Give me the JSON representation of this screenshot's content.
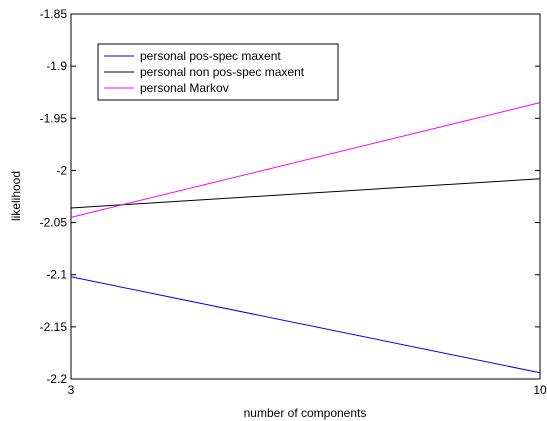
{
  "chart_data": {
    "type": "line",
    "title": "",
    "xlabel": "number of components",
    "ylabel": "likelihood",
    "xlim": [
      3,
      10
    ],
    "ylim": [
      -2.2,
      -1.85
    ],
    "x_ticks": [
      3,
      10
    ],
    "x_tick_labels": [
      "3",
      "10"
    ],
    "y_ticks": [
      -1.85,
      -1.9,
      -1.95,
      -2.0,
      -2.05,
      -2.1,
      -2.15,
      -2.2
    ],
    "y_tick_labels": [
      "-1.85",
      "-1.9",
      "-1.95",
      "-2",
      "-2.05",
      "-2.1",
      "-2.15",
      "-2.2"
    ],
    "grid": false,
    "legend_position": "top-left",
    "series": [
      {
        "name": "personal pos-spec maxent",
        "color": "#0000ff",
        "x": [
          3,
          10
        ],
        "y": [
          -2.102,
          -2.194
        ]
      },
      {
        "name": "personal non pos-spec maxent",
        "color": "#000000",
        "x": [
          3,
          10
        ],
        "y": [
          -2.036,
          -2.008
        ]
      },
      {
        "name": "personal Markov",
        "color": "#ff00ff",
        "x": [
          3,
          10
        ],
        "y": [
          -2.045,
          -1.935
        ]
      }
    ]
  }
}
